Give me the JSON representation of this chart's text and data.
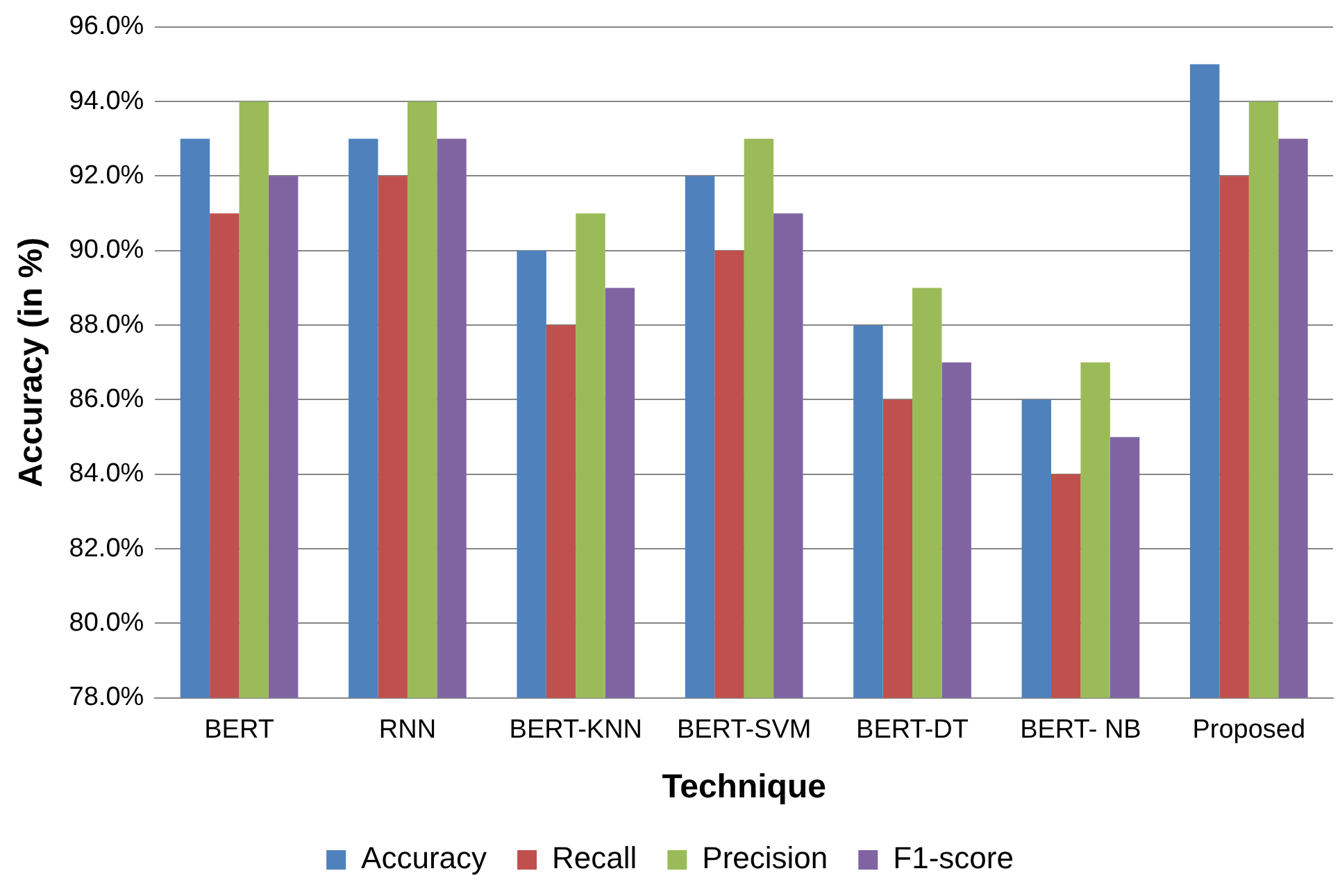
{
  "chart_data": {
    "type": "bar",
    "xlabel": "Technique",
    "ylabel": "Accuracy (in %)",
    "categories": [
      "BERT",
      "RNN",
      "BERT-KNN",
      "BERT-SVM",
      "BERT-DT",
      "BERT- NB",
      "Proposed"
    ],
    "series": [
      {
        "name": "Accuracy",
        "color": "#4f81bd",
        "values": [
          93,
          93,
          90,
          92,
          88,
          86,
          95
        ]
      },
      {
        "name": "Recall",
        "color": "#c0504d",
        "values": [
          91,
          92,
          88,
          90,
          86,
          84,
          92
        ]
      },
      {
        "name": "Precision",
        "color": "#9bbb59",
        "values": [
          94,
          94,
          91,
          93,
          89,
          87,
          94
        ]
      },
      {
        "name": "F1-score",
        "color": "#8064a2",
        "values": [
          92,
          93,
          89,
          91,
          87,
          85,
          93
        ]
      }
    ],
    "ylim": [
      78,
      96
    ],
    "yticks": [
      {
        "value": 78,
        "label": "78.0%"
      },
      {
        "value": 80,
        "label": "80.0%"
      },
      {
        "value": 82,
        "label": "82.0%"
      },
      {
        "value": 84,
        "label": "84.0%"
      },
      {
        "value": 86,
        "label": "86.0%"
      },
      {
        "value": 88,
        "label": "88.0%"
      },
      {
        "value": 90,
        "label": "90.0%"
      },
      {
        "value": 92,
        "label": "92.0%"
      },
      {
        "value": 94,
        "label": "94.0%"
      },
      {
        "value": 96,
        "label": "96.0%"
      }
    ],
    "grid": "y",
    "legend": "bottom"
  }
}
